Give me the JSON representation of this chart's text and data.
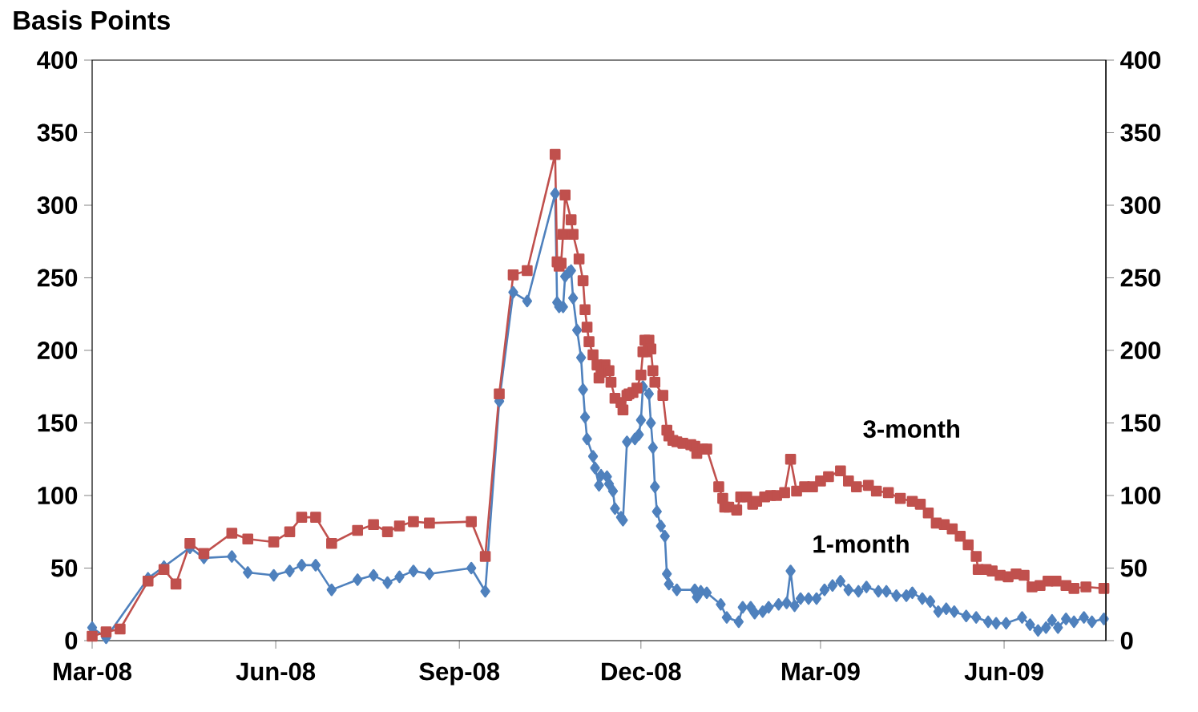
{
  "chart_data": {
    "type": "line",
    "ylabel": "Basis Points",
    "xlim": [
      "2008-03-01",
      "2009-07-22"
    ],
    "xticks": [
      {
        "value": "2008-03-01",
        "label": "Mar-08"
      },
      {
        "value": "2008-06-01",
        "label": "Jun-08"
      },
      {
        "value": "2008-09-01",
        "label": "Sep-08"
      },
      {
        "value": "2008-12-01",
        "label": "Dec-08"
      },
      {
        "value": "2009-03-01",
        "label": "Mar-09"
      },
      {
        "value": "2009-06-01",
        "label": "Jun-09"
      }
    ],
    "ylim": [
      0,
      400
    ],
    "yticks": [
      0,
      50,
      100,
      150,
      200,
      250,
      300,
      350,
      400
    ],
    "y2lim": [
      0,
      400
    ],
    "y2ticks": [
      0,
      50,
      100,
      150,
      200,
      250,
      300,
      350,
      400
    ],
    "line_style": "solid",
    "series": [
      {
        "name": "1-month",
        "color": "#4f81bd",
        "marker": "diamond",
        "x": [
          "2008-03-01",
          "2008-03-08",
          "2008-03-15",
          "2008-03-29",
          "2008-04-06",
          "2008-04-12",
          "2008-04-19",
          "2008-04-26",
          "2008-05-10",
          "2008-05-18",
          "2008-05-31",
          "2008-06-08",
          "2008-06-14",
          "2008-06-21",
          "2008-06-29",
          "2008-07-12",
          "2008-07-20",
          "2008-07-27",
          "2008-08-02",
          "2008-08-09",
          "2008-08-17",
          "2008-09-07",
          "2008-09-14",
          "2008-09-21",
          "2008-09-28",
          "2008-10-05",
          "2008-10-19",
          "2008-10-20",
          "2008-10-21",
          "2008-10-23",
          "2008-10-24",
          "2008-10-26",
          "2008-10-27",
          "2008-10-28",
          "2008-10-30",
          "2008-11-01",
          "2008-11-02",
          "2008-11-03",
          "2008-11-04",
          "2008-11-07",
          "2008-11-08",
          "2008-11-10",
          "2008-11-11",
          "2008-11-14",
          "2008-11-15",
          "2008-11-17",
          "2008-11-18",
          "2008-11-21",
          "2008-11-22",
          "2008-11-24",
          "2008-11-28",
          "2008-11-30",
          "2008-12-01",
          "2008-12-02",
          "2008-12-05",
          "2008-12-06",
          "2008-12-07",
          "2008-12-08",
          "2008-12-09",
          "2008-12-11",
          "2008-12-13",
          "2008-12-14",
          "2008-12-15",
          "2008-12-19",
          "2008-12-28",
          "2008-12-29",
          "2008-12-31",
          "2009-01-03",
          "2009-01-10",
          "2009-01-13",
          "2009-01-19",
          "2009-01-21",
          "2009-01-25",
          "2009-01-27",
          "2009-01-31",
          "2009-02-03",
          "2009-02-08",
          "2009-02-12",
          "2009-02-14",
          "2009-02-16",
          "2009-02-19",
          "2009-02-23",
          "2009-02-27",
          "2009-03-03",
          "2009-03-07",
          "2009-03-11",
          "2009-03-15",
          "2009-03-20",
          "2009-03-24",
          "2009-03-30",
          "2009-04-03",
          "2009-04-08",
          "2009-04-13",
          "2009-04-16",
          "2009-04-21",
          "2009-04-25",
          "2009-04-29",
          "2009-05-03",
          "2009-05-07",
          "2009-05-13",
          "2009-05-18",
          "2009-05-24",
          "2009-05-28",
          "2009-06-02",
          "2009-06-10",
          "2009-06-14",
          "2009-06-18",
          "2009-06-22",
          "2009-06-25",
          "2009-06-28",
          "2009-07-02",
          "2009-07-06",
          "2009-07-11",
          "2009-07-15",
          "2009-07-21"
        ],
        "values": [
          9,
          2,
          null,
          43,
          51,
          null,
          64,
          57,
          58,
          47,
          45,
          48,
          52,
          52,
          35,
          42,
          45,
          40,
          44,
          48,
          46,
          50,
          34,
          165,
          240,
          234,
          308,
          233,
          230,
          230,
          251,
          254,
          255,
          236,
          214,
          195,
          173,
          154,
          139,
          127,
          119,
          107,
          114,
          113,
          108,
          103,
          91,
          85,
          83,
          137,
          139,
          142,
          152,
          175,
          170,
          150,
          133,
          106,
          89,
          79,
          72,
          46,
          39,
          35,
          35,
          30,
          34,
          33,
          25,
          16,
          13,
          23,
          23,
          19,
          20,
          23,
          25,
          26,
          48,
          24,
          29,
          29,
          29,
          35,
          38,
          41,
          35,
          34,
          37,
          34,
          34,
          31,
          31,
          33,
          29,
          27,
          20,
          22,
          20,
          17,
          16,
          13,
          12,
          12,
          16,
          11,
          7,
          9,
          14,
          9,
          15,
          13,
          16,
          13,
          15
        ]
      },
      {
        "name": "3-month",
        "color": "#c0504d",
        "marker": "square",
        "x": [
          "2008-03-01",
          "2008-03-08",
          "2008-03-15",
          "2008-03-29",
          "2008-04-06",
          "2008-04-12",
          "2008-04-19",
          "2008-04-26",
          "2008-05-10",
          "2008-05-18",
          "2008-05-31",
          "2008-06-08",
          "2008-06-14",
          "2008-06-21",
          "2008-06-29",
          "2008-07-12",
          "2008-07-20",
          "2008-07-27",
          "2008-08-02",
          "2008-08-09",
          "2008-08-17",
          "2008-09-07",
          "2008-09-14",
          "2008-09-21",
          "2008-09-28",
          "2008-10-05",
          "2008-10-19",
          "2008-10-20",
          "2008-10-21",
          "2008-10-22",
          "2008-10-23",
          "2008-10-24",
          "2008-10-27",
          "2008-10-28",
          "2008-10-31",
          "2008-11-02",
          "2008-11-03",
          "2008-11-04",
          "2008-11-05",
          "2008-11-07",
          "2008-11-09",
          "2008-11-10",
          "2008-11-11",
          "2008-11-13",
          "2008-11-15",
          "2008-11-16",
          "2008-11-18",
          "2008-11-21",
          "2008-11-22",
          "2008-11-24",
          "2008-11-25",
          "2008-11-27",
          "2008-11-29",
          "2008-12-01",
          "2008-12-02",
          "2008-12-03",
          "2008-12-04",
          "2008-12-05",
          "2008-12-06",
          "2008-12-07",
          "2008-12-08",
          "2008-12-12",
          "2008-12-14",
          "2008-12-15",
          "2008-12-17",
          "2008-12-19",
          "2008-12-22",
          "2008-12-26",
          "2008-12-28",
          "2008-12-29",
          "2009-01-01",
          "2009-01-03",
          "2009-01-09",
          "2009-01-11",
          "2009-01-12",
          "2009-01-14",
          "2009-01-18",
          "2009-01-20",
          "2009-01-23",
          "2009-01-26",
          "2009-01-28",
          "2009-02-01",
          "2009-02-04",
          "2009-02-07",
          "2009-02-11",
          "2009-02-14",
          "2009-02-17",
          "2009-02-21",
          "2009-02-25",
          "2009-03-01",
          "2009-03-05",
          "2009-03-11",
          "2009-03-15",
          "2009-03-19",
          "2009-03-25",
          "2009-03-29",
          "2009-04-04",
          "2009-04-10",
          "2009-04-16",
          "2009-04-20",
          "2009-04-24",
          "2009-04-28",
          "2009-05-02",
          "2009-05-06",
          "2009-05-10",
          "2009-05-14",
          "2009-05-18",
          "2009-05-19",
          "2009-05-23",
          "2009-05-26",
          "2009-05-30",
          "2009-06-03",
          "2009-06-07",
          "2009-06-11",
          "2009-06-15",
          "2009-06-19",
          "2009-06-23",
          "2009-06-27",
          "2009-07-02",
          "2009-07-06",
          "2009-07-12",
          "2009-07-21"
        ],
        "values": [
          3,
          6,
          8,
          41,
          49,
          39,
          67,
          60,
          74,
          70,
          68,
          75,
          85,
          85,
          67,
          76,
          80,
          75,
          79,
          82,
          81,
          82,
          58,
          170,
          252,
          255,
          335,
          261,
          258,
          260,
          280,
          307,
          290,
          280,
          263,
          248,
          228,
          216,
          206,
          197,
          190,
          181,
          185,
          190,
          186,
          178,
          167,
          164,
          159,
          169,
          170,
          171,
          174,
          183,
          199,
          207,
          199,
          207,
          201,
          186,
          178,
          169,
          145,
          141,
          138,
          137,
          136,
          135,
          134,
          129,
          132,
          132,
          106,
          98,
          92,
          92,
          90,
          99,
          99,
          94,
          96,
          99,
          100,
          100,
          102,
          125,
          103,
          106,
          106,
          110,
          113,
          117,
          110,
          106,
          107,
          103,
          102,
          98,
          96,
          94,
          88,
          81,
          80,
          77,
          72,
          66,
          58,
          49,
          49,
          48,
          45,
          44,
          46,
          45,
          37,
          38,
          41,
          41,
          38,
          36,
          37,
          36
        ]
      }
    ]
  }
}
